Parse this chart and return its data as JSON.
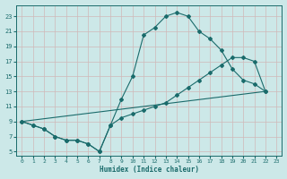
{
  "xlabel": "Humidex (Indice chaleur)",
  "xlim": [
    -0.5,
    23.5
  ],
  "ylim": [
    4.5,
    24.5
  ],
  "xticks": [
    0,
    1,
    2,
    3,
    4,
    5,
    6,
    7,
    8,
    9,
    10,
    11,
    12,
    13,
    14,
    15,
    16,
    17,
    18,
    19,
    20,
    21,
    22,
    23
  ],
  "yticks": [
    5,
    7,
    9,
    11,
    13,
    15,
    17,
    19,
    21,
    23
  ],
  "bg_color": "#cce8e8",
  "grid_color": "#b0d8d0",
  "line_color": "#1a6b6b",
  "curve1_x": [
    0,
    1,
    2,
    3,
    4,
    5,
    6,
    7,
    8,
    9,
    10,
    11,
    12,
    13,
    14,
    15,
    16,
    17,
    18,
    19,
    20,
    21,
    22
  ],
  "curve1_y": [
    9,
    8.5,
    8,
    7,
    6.5,
    6.5,
    6,
    5,
    8.5,
    12,
    15,
    20.5,
    21.5,
    23,
    23.5,
    23,
    21,
    20,
    18.5,
    16,
    14.5,
    14,
    13
  ],
  "curve2_x": [
    0,
    1,
    2,
    3,
    4,
    5,
    6,
    7,
    8,
    9,
    10,
    11,
    12,
    13,
    14,
    15,
    16,
    17,
    18,
    19,
    20,
    21,
    22
  ],
  "curve2_y": [
    9,
    8.5,
    8,
    7,
    6.5,
    6.5,
    6,
    5,
    8.5,
    9.5,
    10,
    10.5,
    11,
    11.5,
    12.5,
    13.5,
    14.5,
    15.5,
    16.5,
    17.5,
    17.5,
    17,
    13
  ],
  "curve3_x": [
    0,
    22
  ],
  "curve3_y": [
    9,
    13
  ]
}
